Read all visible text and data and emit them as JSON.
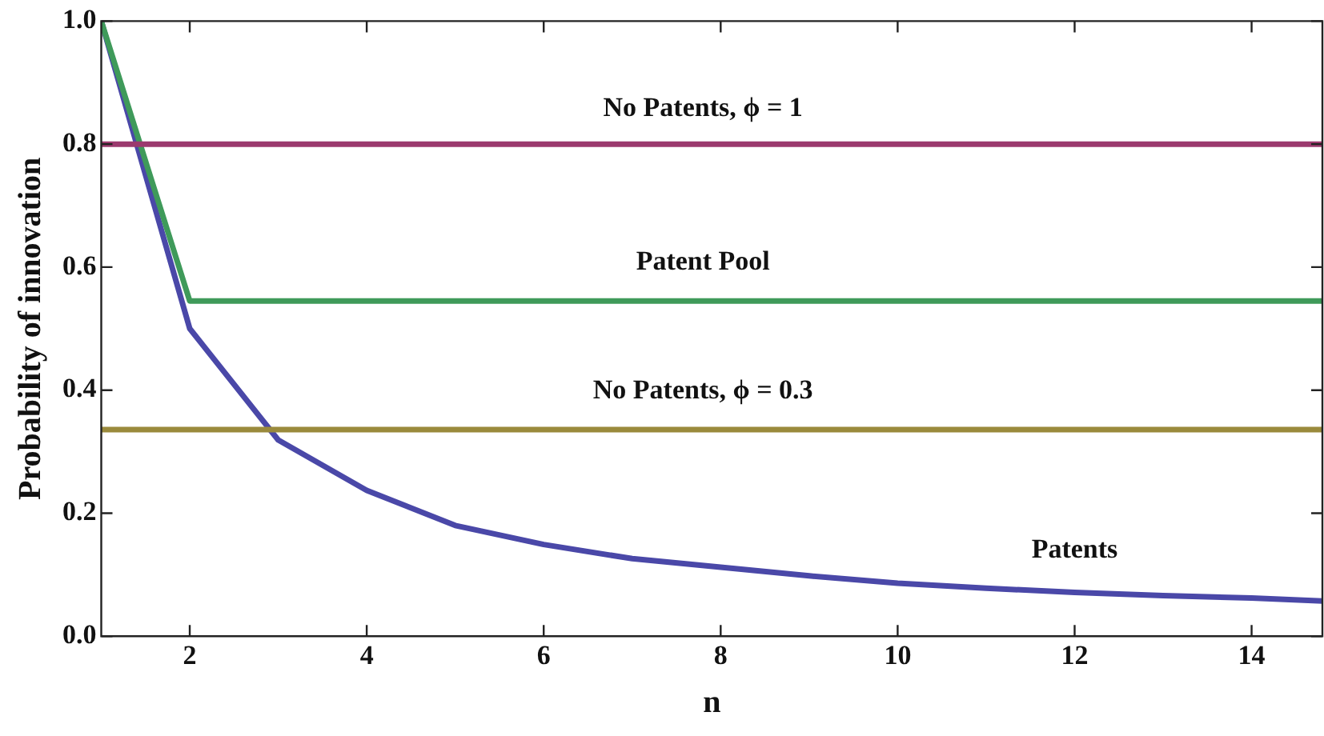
{
  "chart_data": {
    "type": "line",
    "xlabel": "n",
    "ylabel": "Probability of innovation",
    "xlim": [
      1,
      14.8
    ],
    "xticks": [
      2,
      4,
      6,
      8,
      10,
      12,
      14
    ],
    "ylim": [
      0,
      1
    ],
    "yticks": [
      {
        "value": 0,
        "label": "0.0"
      },
      0.2,
      0.4,
      0.6,
      0.8,
      {
        "value": 1,
        "label": "1.0"
      }
    ],
    "grid": false,
    "legend": false,
    "marker": "none",
    "line_style": "solid",
    "series": [
      {
        "name": "No Patents, ϕ = 1",
        "color": "#9b3a6e",
        "x": [
          1,
          14.8
        ],
        "values": [
          0.8,
          0.8
        ]
      },
      {
        "name": "Patent Pool",
        "color": "#3f9a5a",
        "x": [
          1,
          2,
          14.8
        ],
        "values": [
          1,
          0.545,
          0.545
        ]
      },
      {
        "name": "No Patents, ϕ = 0.3",
        "color": "#9a8a3c",
        "x": [
          1,
          14.8
        ],
        "values": [
          0.336,
          0.336
        ]
      },
      {
        "name": "Patents",
        "color": "#4a48a8",
        "x": [
          1,
          2,
          3,
          4,
          5,
          6,
          7,
          8,
          9,
          10,
          11,
          12,
          13,
          14,
          14.8
        ],
        "values": [
          1,
          0.5,
          0.319,
          0.237,
          0.18,
          0.149,
          0.126,
          0.112,
          0.098,
          0.086,
          0.078,
          0.071,
          0.066,
          0.062,
          0.057
        ]
      }
    ]
  }
}
